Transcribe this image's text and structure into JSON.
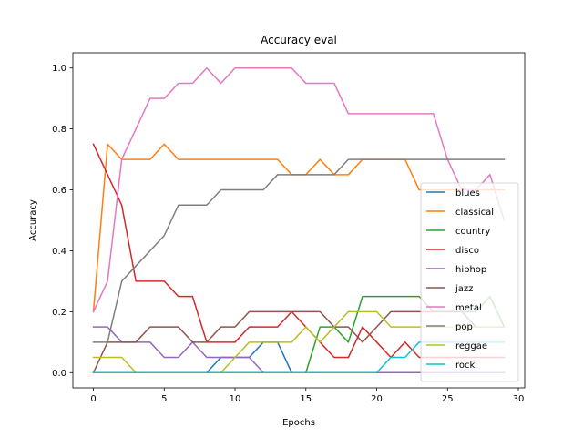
{
  "chart_data": {
    "type": "line",
    "title": "Accuracy eval",
    "xlabel": "Epochs",
    "ylabel": "Accuracy",
    "xlim": [
      -1.45,
      30.45
    ],
    "ylim": [
      -0.05,
      1.05
    ],
    "xticks": [
      0,
      5,
      10,
      15,
      20,
      25,
      30
    ],
    "yticks": [
      0.0,
      0.2,
      0.4,
      0.6,
      0.8,
      1.0
    ],
    "grid": false,
    "legend_position": "lower-right",
    "x": [
      0,
      1,
      2,
      3,
      4,
      5,
      6,
      7,
      8,
      9,
      10,
      11,
      12,
      13,
      14,
      15,
      16,
      17,
      18,
      19,
      20,
      21,
      22,
      23,
      24,
      25,
      26,
      27,
      28,
      29
    ],
    "series": [
      {
        "name": "blues",
        "color": "#1f77b4",
        "values": [
          0,
          0,
          0,
          0,
          0,
          0,
          0,
          0,
          0,
          0.05,
          0.05,
          0.05,
          0.1,
          0.1,
          0,
          0,
          0,
          0,
          0,
          0,
          0,
          0,
          0,
          0,
          0,
          0,
          0,
          0,
          0,
          0
        ]
      },
      {
        "name": "classical",
        "color": "#ff7f0e",
        "values": [
          0.2,
          0.75,
          0.7,
          0.7,
          0.7,
          0.75,
          0.7,
          0.7,
          0.7,
          0.7,
          0.7,
          0.7,
          0.7,
          0.7,
          0.65,
          0.65,
          0.7,
          0.65,
          0.65,
          0.7,
          0.7,
          0.7,
          0.7,
          0.6,
          0.6,
          0.6,
          0.6,
          0.6,
          0.6,
          0.6
        ]
      },
      {
        "name": "country",
        "color": "#2ca02c",
        "values": [
          0,
          0,
          0,
          0,
          0,
          0,
          0,
          0,
          0,
          0,
          0,
          0,
          0,
          0,
          0,
          0,
          0.15,
          0.15,
          0.1,
          0.25,
          0.25,
          0.25,
          0.25,
          0.25,
          0.2,
          0.2,
          0.2,
          0.2,
          0.25,
          0.15
        ]
      },
      {
        "name": "disco",
        "color": "#d62728",
        "values": [
          0.75,
          0.65,
          0.55,
          0.3,
          0.3,
          0.3,
          0.25,
          0.25,
          0.1,
          0.1,
          0.1,
          0.15,
          0.15,
          0.15,
          0.2,
          0.15,
          0.1,
          0.05,
          0.05,
          0.15,
          0.1,
          0.05,
          0.1,
          0.05,
          0.05,
          0.05,
          0.05,
          0.05,
          0.05,
          0.05
        ]
      },
      {
        "name": "hiphop",
        "color": "#9467bd",
        "values": [
          0.15,
          0.15,
          0.1,
          0.1,
          0.1,
          0.05,
          0.05,
          0.1,
          0.05,
          0.05,
          0.05,
          0.05,
          0,
          0,
          0,
          0,
          0,
          0,
          0,
          0,
          0,
          0,
          0,
          0,
          0,
          0,
          0,
          0,
          0,
          0
        ]
      },
      {
        "name": "jazz",
        "color": "#8c564b",
        "values": [
          0,
          0.1,
          0.1,
          0.1,
          0.15,
          0.15,
          0.15,
          0.1,
          0.1,
          0.15,
          0.15,
          0.2,
          0.2,
          0.2,
          0.2,
          0.2,
          0.2,
          0.15,
          0.15,
          0.1,
          0.15,
          0.2,
          0.2,
          0.2,
          0.2,
          0.2,
          0.2,
          0.15,
          0.15,
          0.15
        ]
      },
      {
        "name": "metal",
        "color": "#e377c2",
        "values": [
          0.2,
          0.3,
          0.7,
          0.8,
          0.9,
          0.9,
          0.95,
          0.95,
          1.0,
          0.95,
          1.0,
          1.0,
          1.0,
          1.0,
          1.0,
          0.95,
          0.95,
          0.95,
          0.85,
          0.85,
          0.85,
          0.85,
          0.85,
          0.85,
          0.85,
          0.7,
          0.6,
          0.6,
          0.65,
          0.5
        ]
      },
      {
        "name": "pop",
        "color": "#7f7f7f",
        "values": [
          0.1,
          0.1,
          0.3,
          0.35,
          0.4,
          0.45,
          0.55,
          0.55,
          0.55,
          0.6,
          0.6,
          0.6,
          0.6,
          0.65,
          0.65,
          0.65,
          0.65,
          0.65,
          0.7,
          0.7,
          0.7,
          0.7,
          0.7,
          0.7,
          0.7,
          0.7,
          0.7,
          0.7,
          0.7,
          0.7
        ]
      },
      {
        "name": "reggae",
        "color": "#bcbd22",
        "values": [
          0.05,
          0.05,
          0.05,
          0,
          0,
          0,
          0,
          0,
          0,
          0,
          0.05,
          0.1,
          0.1,
          0.1,
          0.1,
          0.15,
          0.1,
          0.15,
          0.2,
          0.2,
          0.2,
          0.15,
          0.15,
          0.15,
          0.15,
          0.15,
          0.15,
          0.15,
          0.15,
          0.15
        ]
      },
      {
        "name": "rock",
        "color": "#17becf",
        "values": [
          0,
          0,
          0,
          0,
          0,
          0,
          0,
          0,
          0,
          0,
          0,
          0,
          0,
          0,
          0,
          0,
          0,
          0,
          0,
          0,
          0,
          0.05,
          0.05,
          0.1,
          0.1,
          0.1,
          0.1,
          0.1,
          0.1,
          0.1
        ]
      }
    ]
  }
}
